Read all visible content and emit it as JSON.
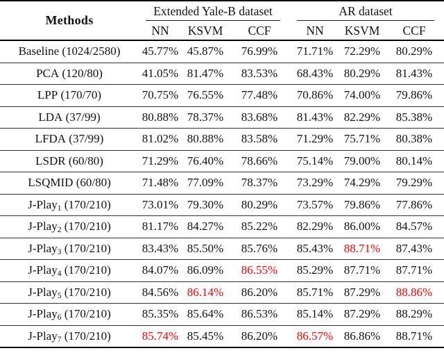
{
  "table": {
    "methods_header": "Methods",
    "groups": [
      {
        "label": "Extended Yale-B dataset"
      },
      {
        "label": "AR dataset"
      }
    ],
    "sub_headers": [
      "NN",
      "KSVM",
      "CCF",
      "NN",
      "KSVM",
      "CCF"
    ],
    "rows": [
      {
        "method": {
          "base": "Baseline",
          "sub": "",
          "args": "(1024/2580)"
        },
        "cells": [
          {
            "text": "45.77%",
            "red": false
          },
          {
            "text": "45.87%",
            "red": false
          },
          {
            "text": "76.99%",
            "red": false
          },
          {
            "text": "71.71%",
            "red": false
          },
          {
            "text": "72.29%",
            "red": false
          },
          {
            "text": "80.29%",
            "red": false
          }
        ]
      },
      {
        "method": {
          "base": "PCA",
          "sub": "",
          "args": "(120/80)"
        },
        "cells": [
          {
            "text": "41.05%",
            "red": false
          },
          {
            "text": "81.47%",
            "red": false
          },
          {
            "text": "83.53%",
            "red": false
          },
          {
            "text": "68.43%",
            "red": false
          },
          {
            "text": "80.29%",
            "red": false
          },
          {
            "text": "81.43%",
            "red": false
          }
        ]
      },
      {
        "method": {
          "base": "LPP",
          "sub": "",
          "args": "(170/70)"
        },
        "cells": [
          {
            "text": "70.75%",
            "red": false
          },
          {
            "text": "76.55%",
            "red": false
          },
          {
            "text": "77.48%",
            "red": false
          },
          {
            "text": "70.86%",
            "red": false
          },
          {
            "text": "74.00%",
            "red": false
          },
          {
            "text": "79.86%",
            "red": false
          }
        ]
      },
      {
        "method": {
          "base": "LDA",
          "sub": "",
          "args": "(37/99)"
        },
        "cells": [
          {
            "text": "80.88%",
            "red": false
          },
          {
            "text": "78.37%",
            "red": false
          },
          {
            "text": "83.68%",
            "red": false
          },
          {
            "text": "81.43%",
            "red": false
          },
          {
            "text": "82.29%",
            "red": false
          },
          {
            "text": "85.38%",
            "red": false
          }
        ]
      },
      {
        "method": {
          "base": "LFDA",
          "sub": "",
          "args": "(37/99)"
        },
        "cells": [
          {
            "text": "81.02%",
            "red": false
          },
          {
            "text": "80.88%",
            "red": false
          },
          {
            "text": "83.58%",
            "red": false
          },
          {
            "text": "71.29%",
            "red": false
          },
          {
            "text": "75.71%",
            "red": false
          },
          {
            "text": "80.38%",
            "red": false
          }
        ]
      },
      {
        "method": {
          "base": "LSDR",
          "sub": "",
          "args": "(60/80)"
        },
        "cells": [
          {
            "text": "71.29%",
            "red": false
          },
          {
            "text": "76.40%",
            "red": false
          },
          {
            "text": "78.66%",
            "red": false
          },
          {
            "text": "75.14%",
            "red": false
          },
          {
            "text": "79.00%",
            "red": false
          },
          {
            "text": "80.14%",
            "red": false
          }
        ]
      },
      {
        "method": {
          "base": "LSQMID",
          "sub": "",
          "args": "(60/80)"
        },
        "cells": [
          {
            "text": "71.48%",
            "red": false
          },
          {
            "text": "77.09%",
            "red": false
          },
          {
            "text": "78.37%",
            "red": false
          },
          {
            "text": "73.29%",
            "red": false
          },
          {
            "text": "74.29%",
            "red": false
          },
          {
            "text": "79.29%",
            "red": false
          }
        ]
      },
      {
        "method": {
          "base": "J-Play",
          "sub": "1",
          "args": "(170/210)"
        },
        "cells": [
          {
            "text": "73.01%",
            "red": false
          },
          {
            "text": "79.30%",
            "red": false
          },
          {
            "text": "80.29%",
            "red": false
          },
          {
            "text": "73.57%",
            "red": false
          },
          {
            "text": "79.86%",
            "red": false
          },
          {
            "text": "77.86%",
            "red": false
          }
        ]
      },
      {
        "method": {
          "base": "J-Play",
          "sub": "2",
          "args": "(170/210)"
        },
        "cells": [
          {
            "text": "81.17%",
            "red": false
          },
          {
            "text": "84.27%",
            "red": false
          },
          {
            "text": "85.22%",
            "red": false
          },
          {
            "text": "82.29%",
            "red": false
          },
          {
            "text": "86.00%",
            "red": false
          },
          {
            "text": "84.57%",
            "red": false
          }
        ]
      },
      {
        "method": {
          "base": "J-Play",
          "sub": "3",
          "args": "(170/210)"
        },
        "cells": [
          {
            "text": "83.43%",
            "red": false
          },
          {
            "text": "85.50%",
            "red": false
          },
          {
            "text": "85.76%",
            "red": false
          },
          {
            "text": "85.43%",
            "red": false
          },
          {
            "text": "88.71%",
            "red": true
          },
          {
            "text": "87.43%",
            "red": false
          }
        ]
      },
      {
        "method": {
          "base": "J-Play",
          "sub": "4",
          "args": "(170/210)"
        },
        "cells": [
          {
            "text": "84.07%",
            "red": false
          },
          {
            "text": "86.09%",
            "red": false
          },
          {
            "text": "86.55%",
            "red": true
          },
          {
            "text": "85.29%",
            "red": false
          },
          {
            "text": "87.71%",
            "red": false
          },
          {
            "text": "87.71%",
            "red": false
          }
        ]
      },
      {
        "method": {
          "base": "J-Play",
          "sub": "5",
          "args": "(170/210)"
        },
        "cells": [
          {
            "text": "84.56%",
            "red": false
          },
          {
            "text": "86.14%",
            "red": true
          },
          {
            "text": "86.20%",
            "red": false
          },
          {
            "text": "85.71%",
            "red": false
          },
          {
            "text": "87.29%",
            "red": false
          },
          {
            "text": "88.86%",
            "red": true
          }
        ]
      },
      {
        "method": {
          "base": "J-Play",
          "sub": "6",
          "args": "(170/210)"
        },
        "cells": [
          {
            "text": "85.35%",
            "red": false
          },
          {
            "text": "85.64%",
            "red": false
          },
          {
            "text": "86.53%",
            "red": false
          },
          {
            "text": "85.14%",
            "red": false
          },
          {
            "text": "87.29%",
            "red": false
          },
          {
            "text": "88.29%",
            "red": false
          }
        ]
      },
      {
        "method": {
          "base": "J-Play",
          "sub": "7",
          "args": "(170/210)"
        },
        "cells": [
          {
            "text": "85.74%",
            "red": true
          },
          {
            "text": "85.45%",
            "red": false
          },
          {
            "text": "86.20%",
            "red": false
          },
          {
            "text": "86.57%",
            "red": true
          },
          {
            "text": "86.86%",
            "red": false
          },
          {
            "text": "88.71%",
            "red": false
          }
        ]
      }
    ]
  },
  "colors": {
    "red_highlight": "#fb0000",
    "text": "#111111",
    "rule": "#000000"
  }
}
